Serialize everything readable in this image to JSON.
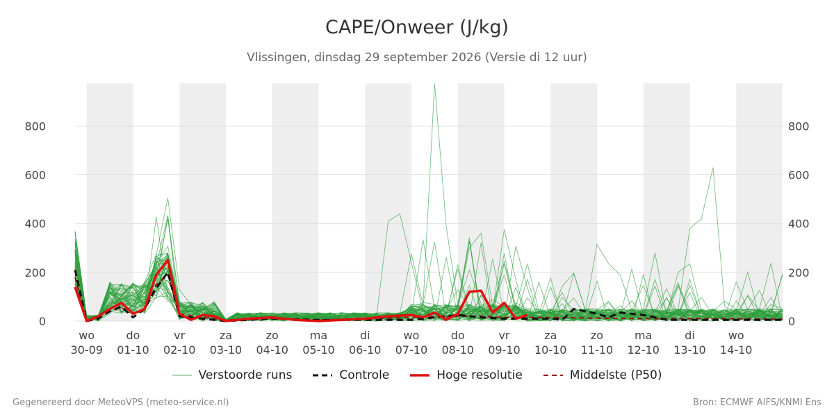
{
  "colors": {
    "ensemble": "#2e9e3c",
    "control": "#111111",
    "hres": "#e01010",
    "p50": "#9b1010",
    "band": "#eeeeee",
    "grid": "#dddddd"
  },
  "chart_data": {
    "type": "line",
    "title": "CAPE/Onweer (J/kg)",
    "subtitle": "Vlissingen, dinsdag 29 september 2026 (Versie di 12 uur)",
    "x_unit": "days from 29-09 00:00",
    "xlim": [
      0.75,
      16.0
    ],
    "ylim": [
      0,
      975
    ],
    "y_ticks": [
      0,
      200,
      400,
      600,
      800
    ],
    "grid": true,
    "legend_position": "bottom",
    "x_ticks": [
      {
        "x": 1,
        "day": "wo",
        "date": "30-09"
      },
      {
        "x": 2,
        "day": "do",
        "date": "01-10"
      },
      {
        "x": 3,
        "day": "vr",
        "date": "02-10"
      },
      {
        "x": 4,
        "day": "za",
        "date": "03-10"
      },
      {
        "x": 5,
        "day": "zo",
        "date": "04-10"
      },
      {
        "x": 6,
        "day": "ma",
        "date": "05-10"
      },
      {
        "x": 7,
        "day": "di",
        "date": "06-10"
      },
      {
        "x": 8,
        "day": "wo",
        "date": "07-10"
      },
      {
        "x": 9,
        "day": "do",
        "date": "08-10"
      },
      {
        "x": 10,
        "day": "vr",
        "date": "09-10"
      },
      {
        "x": 11,
        "day": "za",
        "date": "10-10"
      },
      {
        "x": 12,
        "day": "zo",
        "date": "11-10"
      },
      {
        "x": 13,
        "day": "ma",
        "date": "12-10"
      },
      {
        "x": 14,
        "day": "di",
        "date": "13-10"
      },
      {
        "x": 15,
        "day": "wo",
        "date": "14-10"
      }
    ],
    "shaded_days": [
      [
        1,
        2
      ],
      [
        3,
        4
      ],
      [
        5,
        6
      ],
      [
        7,
        8
      ],
      [
        9,
        10
      ],
      [
        11,
        12
      ],
      [
        13,
        14
      ],
      [
        15,
        16
      ]
    ],
    "series": [
      {
        "name": "Hoge resolutie",
        "style": "hres",
        "x": [
          0.75,
          1.0,
          1.25,
          1.5,
          1.75,
          2.0,
          2.25,
          2.5,
          2.75,
          3.0,
          3.25,
          3.5,
          3.75,
          4.0,
          4.5,
          5.0,
          5.5,
          6.0,
          6.5,
          7.0,
          7.5,
          8.0,
          8.25,
          8.5,
          8.75,
          9.0,
          9.25,
          9.5,
          9.75,
          10.0,
          10.25,
          10.5
        ],
        "y": [
          140,
          0,
          20,
          50,
          75,
          30,
          50,
          190,
          250,
          30,
          5,
          25,
          20,
          0,
          10,
          15,
          5,
          0,
          5,
          10,
          20,
          25,
          15,
          35,
          5,
          30,
          120,
          125,
          35,
          75,
          10,
          25
        ]
      },
      {
        "name": "Controle",
        "style": "control",
        "x": [
          0.75,
          1.0,
          1.25,
          1.5,
          1.75,
          2.0,
          2.25,
          2.5,
          2.75,
          3.0,
          3.5,
          4.0,
          5.0,
          6.0,
          7.0,
          8.0,
          8.5,
          9.0,
          9.5,
          10.0,
          10.5,
          11.0,
          11.25,
          11.5,
          12.0,
          12.25,
          12.5,
          13.0,
          13.5,
          14.0,
          15.0,
          15.5,
          16.0
        ],
        "y": [
          210,
          0,
          10,
          40,
          60,
          15,
          50,
          135,
          200,
          20,
          10,
          0,
          10,
          5,
          5,
          5,
          15,
          25,
          15,
          10,
          10,
          10,
          5,
          50,
          30,
          15,
          35,
          25,
          5,
          5,
          5,
          5,
          5
        ]
      },
      {
        "name": "Middelste (P50)",
        "style": "p50",
        "x": [
          0.75,
          1.0,
          1.25,
          1.5,
          1.75,
          2.0,
          2.25,
          2.5,
          2.75,
          3.0,
          3.5,
          4.0,
          5.0,
          6.0,
          7.0,
          8.0,
          9.0,
          9.5,
          10.0,
          11.0,
          12.0,
          13.0,
          14.0,
          15.0,
          16.0
        ],
        "y": [
          180,
          0,
          20,
          40,
          55,
          30,
          45,
          150,
          190,
          30,
          15,
          5,
          10,
          5,
          10,
          15,
          20,
          20,
          15,
          15,
          12,
          10,
          10,
          10,
          8
        ]
      }
    ]
  },
  "legend": {
    "ensemble": "Verstoorde runs",
    "control": "Controle",
    "hres": "Hoge resolutie",
    "p50": "Middelste (P50)"
  },
  "footer": {
    "left": "Gegenereerd door MeteoVPS (meteo-service.nl)",
    "right": "Bron: ECMWF AIFS/KNMI Ens"
  }
}
